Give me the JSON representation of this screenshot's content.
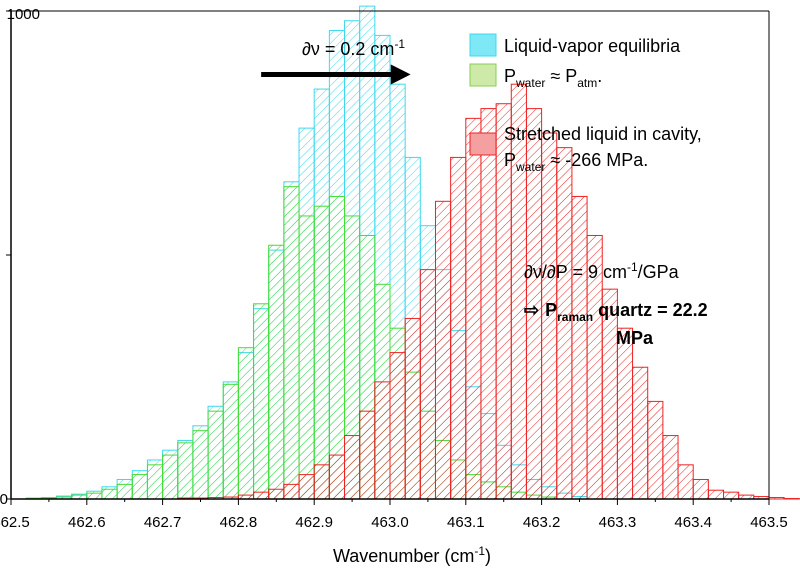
{
  "chart_data": {
    "type": "bar",
    "xlabel_main": "Wavenumber (cm",
    "xlabel_sup": "-1",
    "xlabel_close": ")",
    "xlim": [
      462.5,
      463.5
    ],
    "ylim": [
      0,
      1000
    ],
    "bin_width": 0.02,
    "x_ticks": [
      "462.5",
      "462.6",
      "462.7",
      "462.8",
      "462.9",
      "463.0",
      "463.1",
      "463.2",
      "463.3",
      "463.4",
      "463.5"
    ],
    "y_tick_labels": [
      {
        "value": 0,
        "label": "0"
      },
      {
        "value": 1000,
        "label": "1000"
      }
    ],
    "series": [
      {
        "name": "Liquid-vapor equilibria",
        "edge_color": "#3fd8ee",
        "fill_color": "#7ee8f6",
        "bins_start": 462.53,
        "values": [
          2,
          3,
          6,
          10,
          16,
          25,
          40,
          58,
          80,
          100,
          120,
          150,
          190,
          240,
          300,
          390,
          510,
          650,
          760,
          840,
          960,
          980,
          1010,
          950,
          850,
          700,
          560,
          470,
          345,
          230,
          175,
          110,
          70,
          40,
          25,
          12,
          5
        ]
      },
      {
        "name_main": "P",
        "name_sub": "water",
        "name_mid": " ≈ P",
        "name_sub2": "atm",
        "name_end": ".",
        "edge_color": "#44dd33",
        "fill_color": "#cdeaa8",
        "bins_start": 462.53,
        "values": [
          1,
          2,
          4,
          8,
          12,
          20,
          30,
          50,
          70,
          90,
          115,
          140,
          180,
          235,
          310,
          400,
          520,
          640,
          580,
          600,
          620,
          580,
          540,
          440,
          350,
          260,
          180,
          120,
          80,
          50,
          35,
          25,
          14,
          8,
          4
        ]
      },
      {
        "name": "Stretched liquid in cavity,",
        "name2_main": "P",
        "name2_sub": "water",
        "name2_end": " ≈ -266 MPa.",
        "edge_color": "#ee2222",
        "fill_color": "#f4a0a0",
        "bins_start": 462.73,
        "values": [
          2,
          2,
          3,
          4,
          8,
          14,
          20,
          30,
          50,
          70,
          90,
          130,
          180,
          240,
          300,
          370,
          470,
          610,
          700,
          780,
          800,
          810,
          850,
          800,
          750,
          720,
          620,
          540,
          430,
          350,
          270,
          200,
          130,
          70,
          40,
          18,
          14,
          8,
          5,
          3,
          1
        ]
      }
    ],
    "annotations": {
      "shift_main": "∂ν = 0.2 cm",
      "shift_sup": "-1",
      "slope_main": "∂ν/∂P = 9 cm",
      "slope_sup": "-1",
      "slope_end": "/GPa",
      "arrow_glyph": "⇨",
      "result_main": "P",
      "result_sub": "raman",
      "result_end": " quartz = 22.2",
      "result_line2": "MPa"
    },
    "arrow": {
      "x_from": 462.83,
      "x_to": 463.03,
      "y": 870
    }
  }
}
